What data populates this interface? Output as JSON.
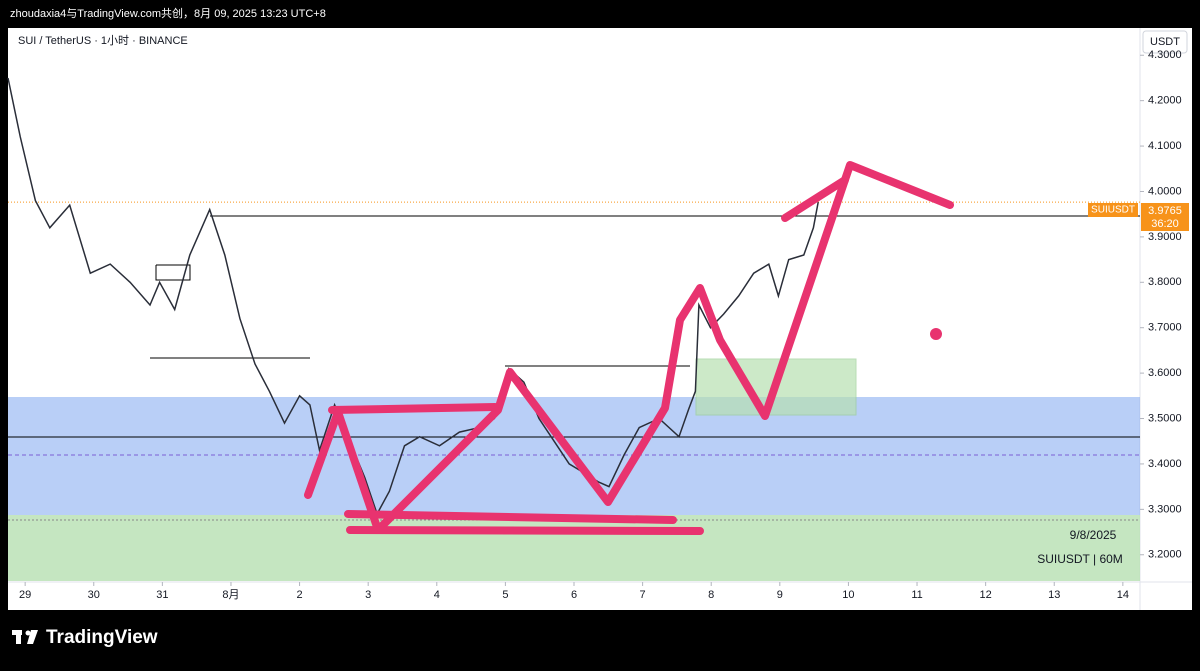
{
  "header": "zhoudaxia4与TradingView.com共创，8月 09, 2025 13:23 UTC+8",
  "footer": {
    "logo": "TradingView"
  },
  "chart_data": {
    "type": "line",
    "title": "SUI / TetherUS · 1小时 · BINANCE",
    "currency": "USDT",
    "annotations": [
      "9/8/2025",
      "SUIUSDT | 60M"
    ],
    "price_tag": {
      "name": "SUIUSDT",
      "value": 3.9765,
      "label": "3.9765",
      "countdown": "36:20"
    },
    "x": [
      -0.25,
      -0.07,
      0.15,
      0.36,
      0.65,
      0.95,
      1.24,
      1.53,
      1.82,
      1.96,
      2.18,
      2.4,
      2.69,
      2.91,
      3.13,
      3.35,
      3.56,
      3.78,
      4.0,
      4.15,
      4.29,
      4.51,
      4.73,
      4.95,
      5.13,
      5.31,
      5.53,
      5.75,
      6.04,
      6.33,
      6.62,
      6.84,
      7.05,
      7.27,
      7.49,
      7.71,
      7.93,
      8.15,
      8.36,
      8.51,
      8.73,
      8.95,
      9.24,
      9.53,
      9.67,
      9.77,
      9.82,
      9.99,
      10.18,
      10.4,
      10.62,
      10.84,
      10.98,
      11.13,
      11.35,
      11.49,
      11.56
    ],
    "series": [
      {
        "name": "SUIUSDT",
        "color": "#2a2e39",
        "values": [
          4.25,
          4.12,
          3.98,
          3.92,
          3.97,
          3.82,
          3.84,
          3.8,
          3.75,
          3.8,
          3.74,
          3.86,
          3.96,
          3.86,
          3.72,
          3.62,
          3.56,
          3.49,
          3.55,
          3.53,
          3.43,
          3.53,
          3.45,
          3.37,
          3.29,
          3.34,
          3.44,
          3.46,
          3.44,
          3.47,
          3.48,
          3.5,
          3.61,
          3.58,
          3.5,
          3.45,
          3.4,
          3.38,
          3.36,
          3.35,
          3.42,
          3.48,
          3.5,
          3.46,
          3.52,
          3.56,
          3.75,
          3.7,
          3.73,
          3.77,
          3.82,
          3.84,
          3.77,
          3.85,
          3.86,
          3.92,
          3.9765
        ]
      }
    ],
    "xlim": [
      -0.25,
      16.25
    ],
    "xticks": [
      {
        "value": 0,
        "label": "29"
      },
      {
        "value": 1,
        "label": "30"
      },
      {
        "value": 2,
        "label": "31"
      },
      {
        "value": 3,
        "label": "8月"
      },
      {
        "value": 4,
        "label": "2"
      },
      {
        "value": 5,
        "label": "3"
      },
      {
        "value": 6,
        "label": "4"
      },
      {
        "value": 7,
        "label": "5"
      },
      {
        "value": 8,
        "label": "6"
      },
      {
        "value": 9,
        "label": "7"
      },
      {
        "value": 10,
        "label": "8"
      },
      {
        "value": 11,
        "label": "9"
      },
      {
        "value": 12,
        "label": "10"
      },
      {
        "value": 13,
        "label": "11"
      },
      {
        "value": 14,
        "label": "12"
      },
      {
        "value": 15,
        "label": "13"
      },
      {
        "value": 16,
        "label": "14"
      }
    ],
    "ylim": [
      3.14,
      4.36
    ],
    "yticks": [
      {
        "value": 3.2,
        "label": "3.2000"
      },
      {
        "value": 3.3,
        "label": "3.3000"
      },
      {
        "value": 3.4,
        "label": "3.4000"
      },
      {
        "value": 3.5,
        "label": "3.5000"
      },
      {
        "value": 3.6,
        "label": "3.6000"
      },
      {
        "value": 3.7,
        "label": "3.7000"
      },
      {
        "value": 3.8,
        "label": "3.8000"
      },
      {
        "value": 3.9,
        "label": "3.9000"
      },
      {
        "value": 4.0,
        "label": "4.0000"
      },
      {
        "value": 4.1,
        "label": "4.1000"
      },
      {
        "value": 4.2,
        "label": "4.2000"
      },
      {
        "value": 4.3,
        "label": "4.3000"
      }
    ]
  }
}
